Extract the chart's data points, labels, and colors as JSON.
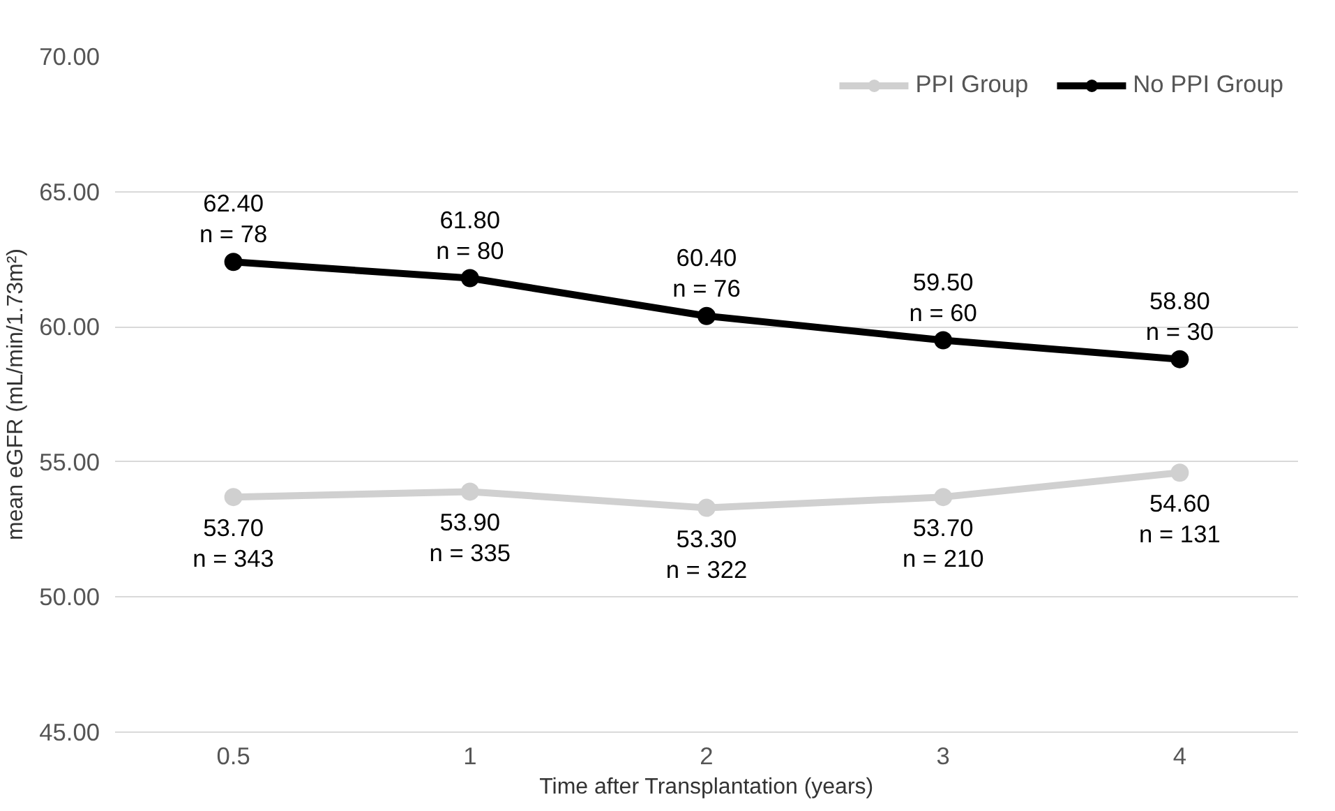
{
  "chart_data": {
    "type": "line",
    "xlabel": "Time after Transplantation (years)",
    "ylabel": "mean eGFR (mL/min/1.73m²)",
    "categories": [
      "0.5",
      "1",
      "2",
      "3",
      "4"
    ],
    "series": [
      {
        "name": "PPI Group",
        "color": "#d0d0d0",
        "values": [
          53.7,
          53.9,
          53.3,
          53.7,
          54.6
        ],
        "value_labels": [
          "53.70\nn = 343",
          "53.90\nn = 335",
          "53.30\nn = 322",
          "53.70\nn = 210",
          "54.60\nn = 131"
        ]
      },
      {
        "name": "No PPI Group",
        "color": "#000000",
        "values": [
          62.4,
          61.8,
          60.4,
          59.5,
          58.8
        ],
        "value_labels": [
          "62.40\nn = 78",
          "61.80\nn = 80",
          "60.40\nn = 76",
          "59.50\nn = 60",
          "58.80\nn = 30"
        ]
      }
    ],
    "ylim": [
      45,
      70
    ],
    "yticks": [
      {
        "value": 45,
        "label": "45.00"
      },
      {
        "value": 50,
        "label": "50.00"
      },
      {
        "value": 55,
        "label": "55.00"
      },
      {
        "value": 60,
        "label": "60.00"
      },
      {
        "value": 65,
        "label": "65.00"
      },
      {
        "value": 70,
        "label": "70.00"
      }
    ],
    "grid": "y",
    "legend": "top right",
    "marker": "circle",
    "line_style": "solid"
  }
}
